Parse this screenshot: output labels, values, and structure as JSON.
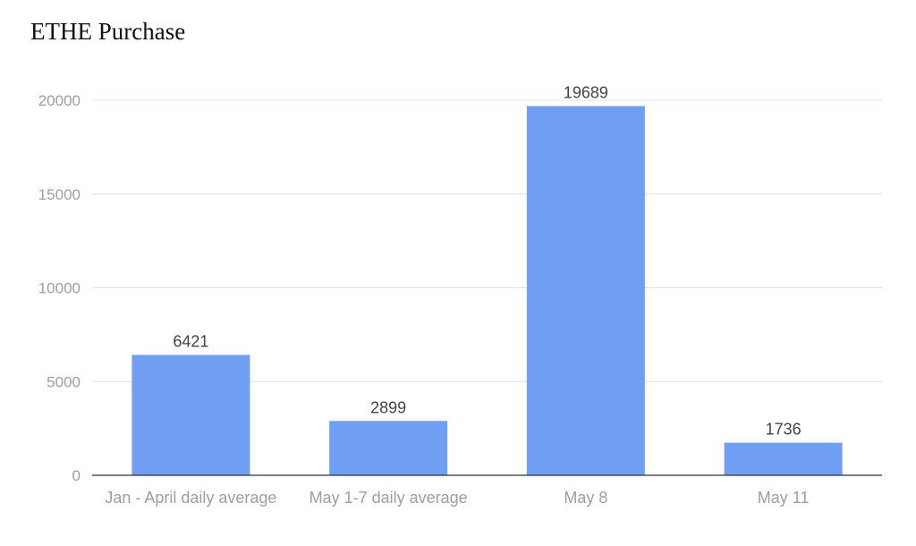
{
  "chart_data": {
    "type": "bar",
    "title": "ETHE Purchase",
    "categories": [
      "Jan - April daily average",
      "May 1-7 daily average",
      "May 8",
      "May 11"
    ],
    "values": [
      6421,
      2899,
      19689,
      1736
    ],
    "data_labels": [
      "6421",
      "2899",
      "19689",
      "1736"
    ],
    "yticks": [
      0,
      5000,
      10000,
      15000,
      20000
    ],
    "ylim": [
      0,
      20000
    ],
    "xlabel": "",
    "ylabel": "",
    "grid": true,
    "legend": "none",
    "bar_color": "#6f9ef3",
    "grid_color": "#e0e0e0",
    "axis_color": "#333333",
    "tick_label_color": "#9e9e9e",
    "data_label_color": "#444444"
  }
}
